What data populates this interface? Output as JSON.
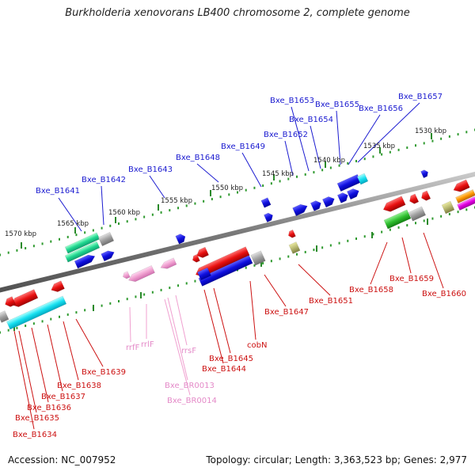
{
  "title": "Burkholderia xenovorans LB400 chromosome 2, complete genome",
  "footer": {
    "accession": "Accession: NC_007952",
    "summary": "Topology: circular; Length: 3,363,523 bp; Genes: 2,977"
  },
  "scale_ticks": [
    "1570 kbp",
    "1565 kbp",
    "1560 kbp",
    "1555 kbp",
    "1550 kbp",
    "1545 kbp",
    "1540 kbp",
    "1535 kbp",
    "1530 kbp"
  ],
  "gene_labels_top": [
    "Bxe_B1641",
    "Bxe_B1642",
    "Bxe_B1643",
    "Bxe_B1648",
    "Bxe_B1649",
    "Bxe_B1652",
    "Bxe_B1653",
    "Bxe_B1654",
    "Bxe_B1655",
    "Bxe_B1656",
    "Bxe_B1657"
  ],
  "gene_labels_bottom": [
    "Bxe_B1634",
    "Bxe_B1635",
    "Bxe_B1636",
    "Bxe_B1637",
    "Bxe_B1638",
    "Bxe_B1639",
    "Bxe_B1644",
    "Bxe_B1645",
    "cobN",
    "Bxe_B1647",
    "Bxe_B1651",
    "Bxe_B1658",
    "Bxe_B1659",
    "Bxe_B1660"
  ],
  "rna_labels": [
    "rrfF",
    "rrlF",
    "rrsF",
    "Bxe_BR0013",
    "Bxe_BR0014"
  ],
  "colors": {
    "backbone": "#7a7a7a",
    "ruler_dots": "#2f9a2f",
    "forward_strand": "#1010e0",
    "reverse_strand": "#e01010",
    "rrna": "#f0a0d0",
    "label_forward": "#1b1bd0",
    "label_reverse": "#cc1111"
  }
}
